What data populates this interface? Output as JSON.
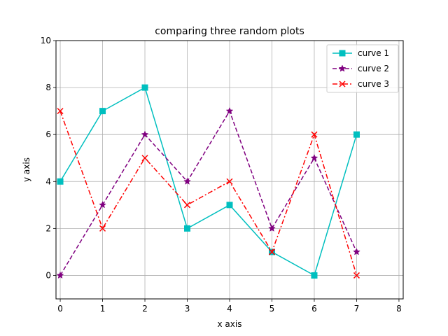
{
  "chart_data": {
    "type": "line",
    "title": "comparing three random plots",
    "xlabel": "x axis",
    "ylabel": "y axis",
    "xlim": [
      -0.1,
      8.1
    ],
    "ylim": [
      -1,
      10
    ],
    "xticks": [
      0,
      1,
      2,
      3,
      4,
      5,
      6,
      7,
      8
    ],
    "yticks": [
      0,
      2,
      4,
      6,
      8,
      10
    ],
    "grid": true,
    "legend_position": "top-right",
    "x": [
      0,
      1,
      2,
      3,
      4,
      5,
      6,
      7
    ],
    "series": [
      {
        "name": "curve 1",
        "values": [
          4,
          7,
          8,
          2,
          3,
          1,
          0,
          6
        ],
        "color": "#00bfbf",
        "linestyle": "solid",
        "marker": "square"
      },
      {
        "name": "curve 2",
        "values": [
          0,
          3,
          6,
          4,
          7,
          2,
          5,
          1
        ],
        "color": "#800080",
        "linestyle": "dashed",
        "marker": "star"
      },
      {
        "name": "curve 3",
        "values": [
          7,
          2,
          5,
          3,
          4,
          1,
          6,
          0
        ],
        "color": "#ff0000",
        "linestyle": "dashdot",
        "marker": "x"
      }
    ]
  }
}
